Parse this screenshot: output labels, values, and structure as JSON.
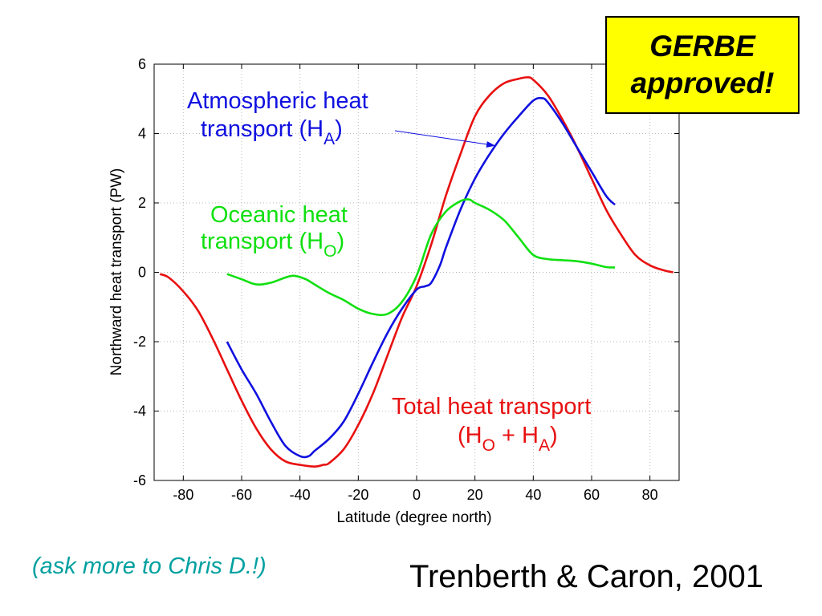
{
  "chart_data": {
    "type": "line",
    "xlabel": "Latitude (degree north)",
    "ylabel": "Northward heat transport (PW)",
    "xlim": [
      -90,
      90
    ],
    "ylim": [
      -6,
      6
    ],
    "xticks": [
      -80,
      -60,
      -40,
      -20,
      0,
      20,
      40,
      60,
      80
    ],
    "yticks": [
      -6,
      -4,
      -2,
      0,
      2,
      4,
      6
    ],
    "grid": true,
    "legend": "none (series labeled by in-plot annotations)",
    "series": [
      {
        "name": "Total heat transport (HO + HA)",
        "color": "#e81010",
        "x": [
          -88,
          -85,
          -80,
          -75,
          -70,
          -65,
          -60,
          -55,
          -50,
          -45,
          -40,
          -35,
          -32,
          -30,
          -25,
          -20,
          -15,
          -10,
          -5,
          0,
          5,
          10,
          15,
          20,
          25,
          30,
          35,
          38,
          40,
          45,
          50,
          55,
          60,
          65,
          70,
          75,
          80,
          85,
          88
        ],
        "y": [
          -0.05,
          -0.15,
          -0.55,
          -1.1,
          -1.9,
          -2.8,
          -3.7,
          -4.5,
          -5.1,
          -5.45,
          -5.55,
          -5.6,
          -5.55,
          -5.5,
          -5.1,
          -4.4,
          -3.5,
          -2.4,
          -1.3,
          -0.4,
          0.8,
          2.2,
          3.4,
          4.5,
          5.1,
          5.45,
          5.58,
          5.62,
          5.55,
          5.1,
          4.4,
          3.6,
          2.7,
          1.8,
          1.1,
          0.5,
          0.2,
          0.05,
          0.0
        ]
      },
      {
        "name": "Atmospheric heat transport (HA)",
        "color": "#1010e0",
        "x": [
          -65,
          -60,
          -55,
          -50,
          -45,
          -40,
          -37,
          -35,
          -30,
          -25,
          -20,
          -15,
          -10,
          -5,
          0,
          3,
          5,
          8,
          10,
          15,
          20,
          25,
          30,
          35,
          40,
          43,
          45,
          50,
          55,
          60,
          65,
          68
        ],
        "y": [
          -2.0,
          -2.8,
          -3.5,
          -4.3,
          -5.0,
          -5.3,
          -5.3,
          -5.15,
          -4.8,
          -4.3,
          -3.5,
          -2.6,
          -1.75,
          -1.05,
          -0.5,
          -0.4,
          -0.3,
          0.2,
          0.7,
          1.8,
          2.7,
          3.4,
          4.0,
          4.5,
          4.95,
          5.02,
          4.9,
          4.3,
          3.6,
          2.9,
          2.2,
          1.95
        ]
      },
      {
        "name": "Oceanic heat transport (HO)",
        "color": "#10e010",
        "x": [
          -65,
          -60,
          -55,
          -50,
          -45,
          -42,
          -38,
          -35,
          -30,
          -25,
          -20,
          -15,
          -10,
          -5,
          0,
          5,
          10,
          15,
          18,
          20,
          25,
          30,
          35,
          40,
          45,
          50,
          55,
          60,
          65,
          68
        ],
        "y": [
          -0.05,
          -0.2,
          -0.35,
          -0.3,
          -0.15,
          -0.1,
          -0.2,
          -0.35,
          -0.6,
          -0.8,
          -1.05,
          -1.2,
          -1.2,
          -0.85,
          -0.1,
          1.1,
          1.75,
          2.05,
          2.1,
          2.0,
          1.8,
          1.5,
          1.0,
          0.5,
          0.38,
          0.35,
          0.32,
          0.25,
          0.15,
          0.14
        ]
      }
    ],
    "annotations": {
      "atmospheric": {
        "line1": "Atmospheric heat",
        "line2": "transport (H",
        "sub": "A",
        "close": ")",
        "arrow_to": [
          27,
          3.65
        ]
      },
      "oceanic": {
        "line1": "Oceanic heat",
        "line2": "transport (H",
        "sub": "O",
        "close": ")"
      },
      "total": {
        "line1": "Total heat transport",
        "open": "(H",
        "sub1": "O",
        "plus": " + H",
        "sub2": "A",
        "close": ")"
      }
    }
  },
  "stamp": {
    "line1": "GERBE",
    "line2": "approved!",
    "background": "#ffff00"
  },
  "note": "(ask more to Chris D.!)",
  "citation": "Trenberth & Caron, 2001",
  "colors": {
    "note_text": "#00a0a0"
  }
}
